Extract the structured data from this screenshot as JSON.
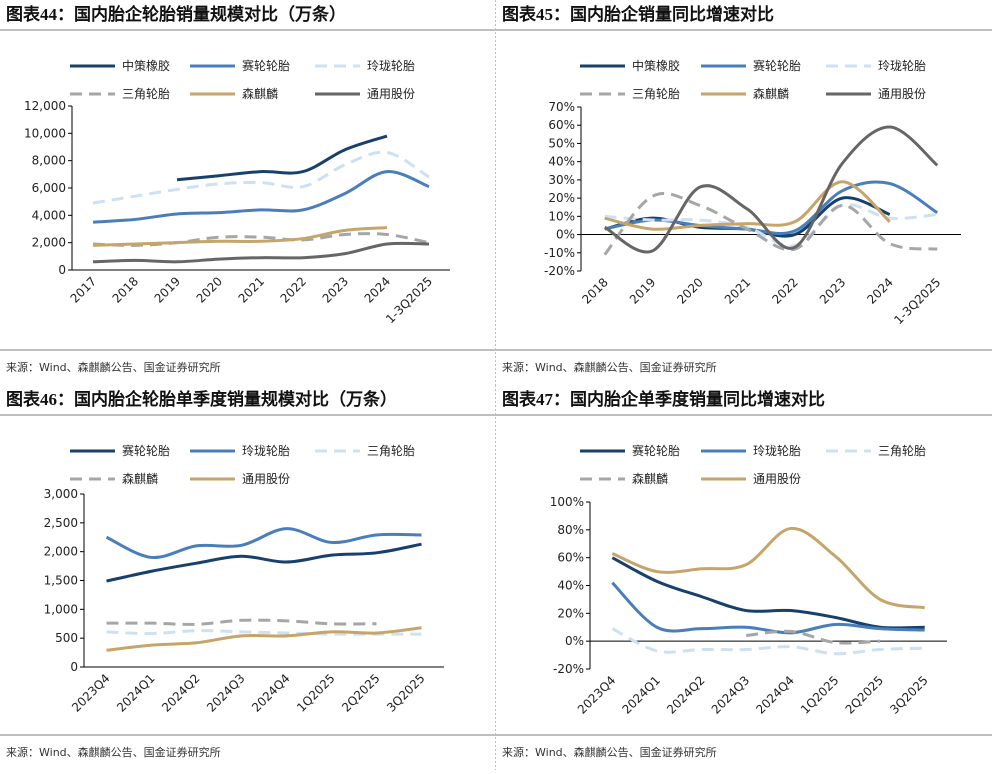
{
  "chart_data": [
    {
      "type": "line",
      "title": "图表44：国内胎企轮胎销量规模对比（万条）",
      "source": "来源：Wind、森麒麟公告、国金证券研究所",
      "categories": [
        "2017",
        "2018",
        "2019",
        "2020",
        "2021",
        "2022",
        "2023",
        "2024",
        "1-3Q2025"
      ],
      "ylim": [
        0,
        12000
      ],
      "yticks": [
        0,
        {
          "value": 2000,
          "label": "2,000"
        },
        {
          "value": 4000,
          "label": "4,000"
        },
        {
          "value": 6000,
          "label": "6,000"
        },
        {
          "value": 8000,
          "label": "8,000"
        },
        {
          "value": 10000,
          "label": "10,000"
        },
        {
          "value": 12000,
          "label": "12,000"
        }
      ],
      "series": [
        {
          "name": "中策橡胶",
          "color": "#17406b",
          "style": "solid",
          "values": [
            null,
            null,
            6600,
            6900,
            7200,
            7200,
            8800,
            9800,
            null
          ]
        },
        {
          "name": "赛轮轮胎",
          "color": "#4a7ebb",
          "style": "solid",
          "values": [
            3500,
            3700,
            4100,
            4200,
            4400,
            4400,
            5600,
            7200,
            6100
          ]
        },
        {
          "name": "玲珑轮胎",
          "color": "#cfe0f3",
          "style": "dashed",
          "values": [
            4900,
            5400,
            5900,
            6300,
            6400,
            6100,
            7700,
            8600,
            6800
          ]
        },
        {
          "name": "三角轮胎",
          "color": "#a6a6a6",
          "style": "dashed",
          "values": [
            1900,
            1800,
            2000,
            2400,
            2400,
            2200,
            2600,
            2600,
            2000
          ]
        },
        {
          "name": "森麒麟",
          "color": "#c5a56a",
          "style": "solid",
          "values": [
            1800,
            1900,
            2000,
            2100,
            2100,
            2300,
            2900,
            3100,
            null
          ]
        },
        {
          "name": "通用股份",
          "color": "#666666",
          "style": "solid",
          "values": [
            600,
            700,
            600,
            800,
            900,
            900,
            1200,
            1900,
            1900
          ]
        }
      ]
    },
    {
      "type": "line",
      "title": "图表45：国内胎企销量同比增速对比",
      "source": "来源：Wind、森麒麟公告、国金证券研究所",
      "categories": [
        "2018",
        "2019",
        "2020",
        "2021",
        "2022",
        "2023",
        "2024",
        "1-3Q2025"
      ],
      "ylim": [
        -20,
        70
      ],
      "yticks": [
        {
          "value": -20,
          "label": "-20%"
        },
        {
          "value": -10,
          "label": "-10%"
        },
        {
          "value": 0,
          "label": "0%"
        },
        {
          "value": 10,
          "label": "10%"
        },
        {
          "value": 20,
          "label": "20%"
        },
        {
          "value": 30,
          "label": "30%"
        },
        {
          "value": 40,
          "label": "40%"
        },
        {
          "value": 50,
          "label": "50%"
        },
        {
          "value": 60,
          "label": "60%"
        },
        {
          "value": 70,
          "label": "70%"
        }
      ],
      "series": [
        {
          "name": "中策橡胶",
          "color": "#17406b",
          "style": "solid",
          "values": [
            3,
            9,
            4,
            3,
            0,
            20,
            11,
            null
          ]
        },
        {
          "name": "赛轮轮胎",
          "color": "#4a7ebb",
          "style": "solid",
          "values": [
            3,
            8,
            5,
            3,
            2,
            24,
            28,
            12
          ]
        },
        {
          "name": "玲珑轮胎",
          "color": "#cfe0f3",
          "style": "dashed",
          "values": [
            10,
            8,
            8,
            4,
            -6,
            16,
            9,
            11
          ]
        },
        {
          "name": "三角轮胎",
          "color": "#a6a6a6",
          "style": "dashed",
          "values": [
            -11,
            21,
            16,
            3,
            -8,
            16,
            -5,
            -8
          ]
        },
        {
          "name": "森麒麟",
          "color": "#c5a56a",
          "style": "solid",
          "values": [
            9,
            3,
            5,
            6,
            7,
            29,
            7,
            null
          ]
        },
        {
          "name": "通用股份",
          "color": "#666666",
          "style": "solid",
          "values": [
            4,
            -9,
            26,
            14,
            -7,
            39,
            59,
            38
          ]
        }
      ]
    },
    {
      "type": "line",
      "title": "图表46：国内胎企轮胎单季度销量规模对比（万条）",
      "source": "来源：Wind、森麒麟公告、国金证券研究所",
      "categories": [
        "2023Q4",
        "2024Q1",
        "2024Q2",
        "2024Q3",
        "2024Q4",
        "1Q2025",
        "2Q2025",
        "3Q2025"
      ],
      "ylim": [
        0,
        3000
      ],
      "yticks": [
        0,
        500,
        {
          "value": 1000,
          "label": "1,000"
        },
        {
          "value": 1500,
          "label": "1,500"
        },
        {
          "value": 2000,
          "label": "2,000"
        },
        {
          "value": 2500,
          "label": "2,500"
        },
        {
          "value": 3000,
          "label": "3,000"
        }
      ],
      "series": [
        {
          "name": "赛轮轮胎",
          "color": "#17406b",
          "style": "solid",
          "values": [
            1490,
            1660,
            1800,
            1920,
            1820,
            1940,
            1980,
            2130
          ]
        },
        {
          "name": "玲珑轮胎",
          "color": "#4a7ebb",
          "style": "solid",
          "values": [
            2250,
            1900,
            2100,
            2110,
            2400,
            2160,
            2290,
            2290
          ]
        },
        {
          "name": "三角轮胎",
          "color": "#cfe0f3",
          "style": "dashed",
          "values": [
            610,
            580,
            630,
            610,
            590,
            570,
            570,
            570
          ]
        },
        {
          "name": "森麒麟",
          "color": "#a6a6a6",
          "style": "dashed",
          "values": [
            760,
            760,
            740,
            810,
            800,
            750,
            750,
            null
          ]
        },
        {
          "name": "通用股份",
          "color": "#c5a56a",
          "style": "solid",
          "values": [
            290,
            380,
            420,
            540,
            540,
            610,
            590,
            680
          ]
        }
      ]
    },
    {
      "type": "line",
      "title": "图表47：国内胎企单季度销量同比增速对比",
      "source": "来源：Wind、森麒麟公告、国金证券研究所",
      "categories": [
        "2023Q4",
        "2024Q1",
        "2024Q2",
        "2024Q3",
        "2024Q4",
        "1Q2025",
        "2Q2025",
        "3Q2025"
      ],
      "ylim": [
        -20,
        100
      ],
      "yticks": [
        {
          "value": -20,
          "label": "-20%"
        },
        {
          "value": 0,
          "label": "0%"
        },
        {
          "value": 20,
          "label": "20%"
        },
        {
          "value": 40,
          "label": "40%"
        },
        {
          "value": 60,
          "label": "60%"
        },
        {
          "value": 80,
          "label": "80%"
        },
        {
          "value": 100,
          "label": "100%"
        }
      ],
      "series": [
        {
          "name": "赛轮轮胎",
          "color": "#17406b",
          "style": "solid",
          "values": [
            60,
            43,
            32,
            22,
            22,
            17,
            10,
            10
          ]
        },
        {
          "name": "玲珑轮胎",
          "color": "#4a7ebb",
          "style": "solid",
          "values": [
            42,
            10,
            9,
            10,
            6,
            12,
            9,
            8
          ]
        },
        {
          "name": "三角轮胎",
          "color": "#cfe0f3",
          "style": "dashed",
          "values": [
            9,
            -7,
            -6,
            -6,
            -4,
            -9,
            -6,
            -5
          ]
        },
        {
          "name": "森麒麟",
          "color": "#a6a6a6",
          "style": "dashed",
          "values": [
            null,
            null,
            null,
            4,
            7,
            -1,
            0,
            null
          ]
        },
        {
          "name": "通用股份",
          "color": "#c5a56a",
          "style": "solid",
          "values": [
            63,
            50,
            52,
            55,
            81,
            61,
            30,
            24
          ]
        }
      ]
    }
  ]
}
